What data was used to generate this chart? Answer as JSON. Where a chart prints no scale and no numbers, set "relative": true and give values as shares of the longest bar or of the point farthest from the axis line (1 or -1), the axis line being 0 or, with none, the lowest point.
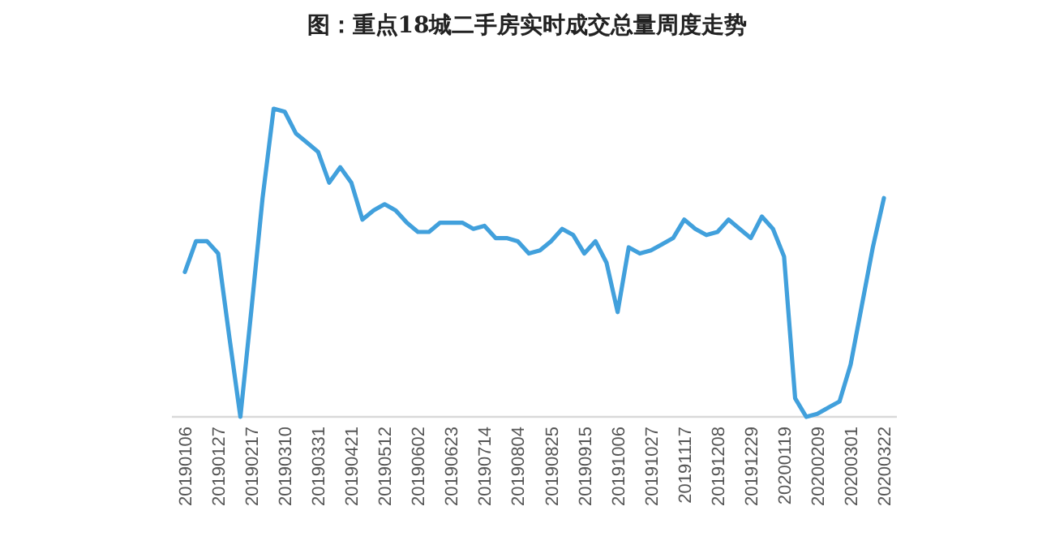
{
  "chart_data": {
    "type": "line",
    "title": "图：重点18城二手房实时成交总量周度走势",
    "relative": true,
    "color": "#41a0dc",
    "categories": [
      "20190106",
      null,
      null,
      "20190127",
      null,
      null,
      "20190217",
      null,
      null,
      "20190310",
      null,
      null,
      "20190331",
      null,
      null,
      "20190421",
      null,
      null,
      "20190512",
      null,
      null,
      "20190602",
      null,
      null,
      "20190623",
      null,
      null,
      "20190714",
      null,
      null,
      "20190804",
      null,
      null,
      "20190825",
      null,
      null,
      "20190915",
      null,
      null,
      "20191006",
      null,
      null,
      "20191027",
      null,
      null,
      "20191117",
      null,
      null,
      "20191208",
      null,
      null,
      "20191229",
      null,
      null,
      "20200119",
      null,
      null,
      "20200209",
      null,
      null,
      "20200301",
      null,
      null,
      "20200322"
    ],
    "values": [
      0.47,
      0.57,
      0.57,
      0.53,
      0.26,
      0,
      0.35,
      0.71,
      1,
      0.99,
      0.92,
      0.89,
      0.86,
      0.76,
      0.81,
      0.76,
      0.64,
      0.67,
      0.69,
      0.67,
      0.63,
      0.6,
      0.6,
      0.63,
      0.63,
      0.63,
      0.61,
      0.62,
      0.58,
      0.58,
      0.57,
      0.53,
      0.54,
      0.57,
      0.61,
      0.59,
      0.53,
      0.57,
      0.5,
      0.34,
      0.55,
      0.53,
      0.54,
      0.56,
      0.58,
      0.64,
      0.61,
      0.59,
      0.6,
      0.64,
      0.61,
      0.58,
      0.65,
      0.61,
      0.52,
      0.06,
      0,
      0.01,
      0.03,
      0.05,
      0.17,
      0.36,
      0.55,
      0.71
    ],
    "marker": "none",
    "line_style": "solid",
    "grid": false
  }
}
